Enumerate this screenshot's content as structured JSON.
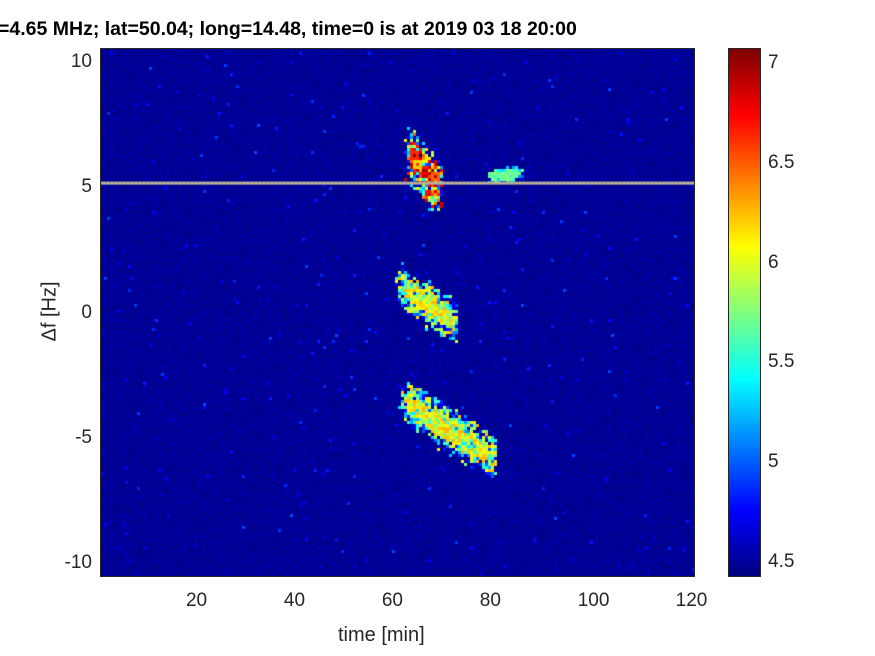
{
  "chart_data": {
    "type": "heatmap",
    "title": "=4.65 MHz;  lat=50.04; long=14.48, time=0 is at 2019 03 18 20:00",
    "xlabel": "time [min]",
    "ylabel": "Δf [Hz]",
    "xlim": [
      0,
      121.5
    ],
    "ylim": [
      -10.5,
      10.6
    ],
    "xticks": [
      20,
      40,
      60,
      80,
      100,
      120
    ],
    "yticks": [
      10,
      5,
      0,
      -5,
      -10
    ],
    "colormap": "jet",
    "clim": [
      4.43,
      7.08
    ],
    "colorbar_ticks": [
      7,
      6.5,
      6,
      5.5,
      5,
      4.5
    ],
    "background_level": 4.45,
    "carrier_line": {
      "freq": 5.25,
      "level": 6.1
    },
    "features": [
      {
        "t_start": 63,
        "f_start": 6.4,
        "t_end": 69,
        "f_end": 5.0,
        "spread_hz": 0.6,
        "peak": 7.0
      },
      {
        "t_start": 61,
        "f_start": 1.1,
        "t_end": 72,
        "f_end": -0.3,
        "spread_hz": 0.45,
        "peak": 6.3
      },
      {
        "t_start": 62,
        "f_start": -3.4,
        "t_end": 80,
        "f_end": -5.7,
        "spread_hz": 0.45,
        "peak": 6.3
      },
      {
        "t_start": 80,
        "f_start": 5.5,
        "t_end": 85,
        "f_end": 5.6,
        "spread_hz": 0.15,
        "peak": 5.8
      }
    ]
  }
}
